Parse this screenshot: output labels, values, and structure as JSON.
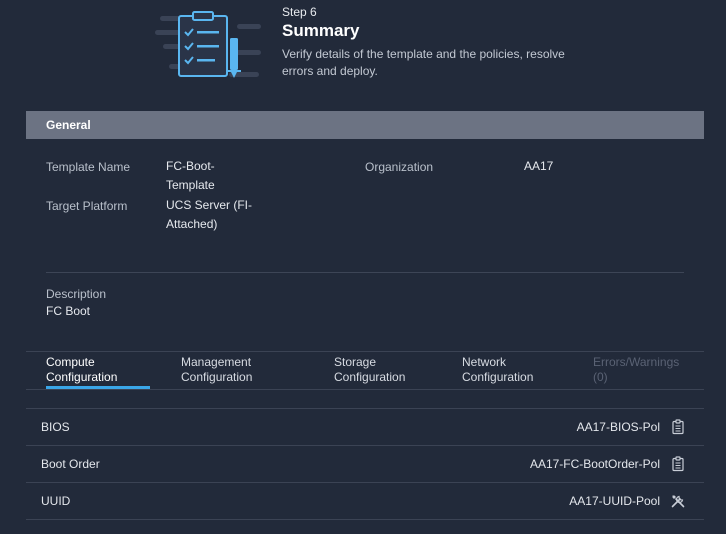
{
  "header": {
    "step": "Step 6",
    "title": "Summary",
    "description": "Verify details of the template and the policies, resolve errors and deploy."
  },
  "general": {
    "section_title": "General",
    "template_name_label": "Template Name",
    "template_name_value": "FC-Boot-Template",
    "target_platform_label": "Target Platform",
    "target_platform_value": "UCS Server (FI-Attached)",
    "organization_label": "Organization",
    "organization_value": "AA17",
    "description_label": "Description",
    "description_value": "FC Boot"
  },
  "tabs": [
    {
      "label": "Compute Configuration",
      "active": true
    },
    {
      "label": "Management Configuration"
    },
    {
      "label": "Storage Configuration"
    },
    {
      "label": "Network Configuration"
    },
    {
      "label": "Errors/Warnings (0)",
      "disabled": true
    }
  ],
  "policies": [
    {
      "label": "BIOS",
      "value": "AA17-BIOS-Pol",
      "icon": "clipboard-icon"
    },
    {
      "label": "Boot Order",
      "value": "AA17-FC-BootOrder-Pol",
      "icon": "clipboard-icon"
    },
    {
      "label": "UUID",
      "value": "AA17-UUID-Pool",
      "icon": "tools-icon"
    }
  ],
  "colors": {
    "background": "#222a3a",
    "section_bar": "#6c7383",
    "accent": "#3aa6e8"
  }
}
